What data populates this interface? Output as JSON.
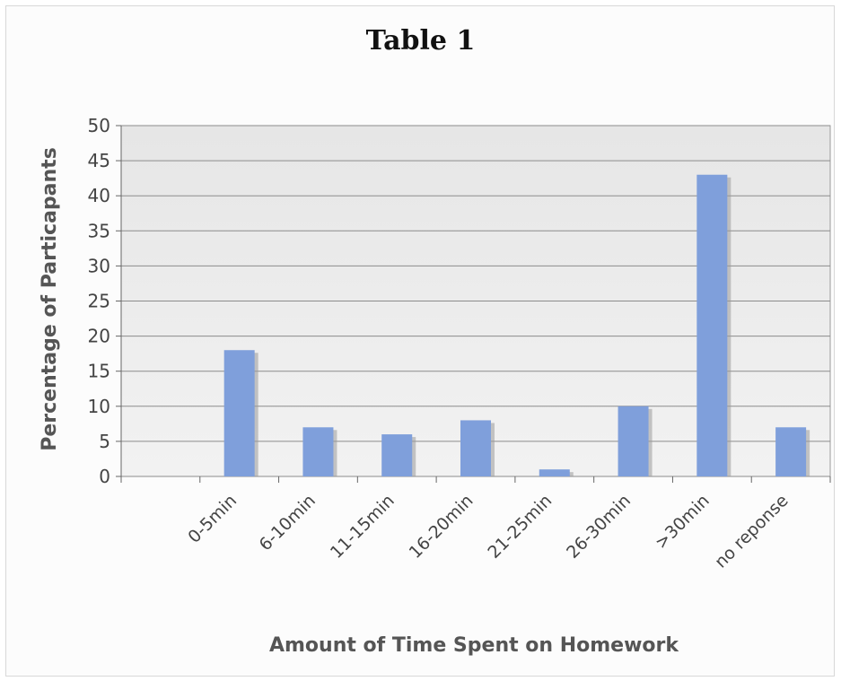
{
  "chart_data": {
    "type": "bar",
    "title": "Table 1",
    "xlabel": "Amount of Time Spent on Homework",
    "ylabel": "Percentage of Particapants",
    "categories": [
      "0-5min",
      "6-10min",
      "11-15min",
      "16-20min",
      "21-25min",
      "26-30min",
      ">30min",
      "no reponse"
    ],
    "values": [
      18,
      7,
      6,
      8,
      1,
      10,
      43,
      7
    ],
    "ylim": [
      0,
      50
    ],
    "yticks": [
      0,
      5,
      10,
      15,
      20,
      25,
      30,
      35,
      40,
      45,
      50
    ],
    "grid": true,
    "legend": "none",
    "colors": {
      "bar": "#7f9fdb",
      "bar_shadow": "#9a9a9a",
      "plot_background": "#ececec",
      "gridline": "#8c8c8c"
    }
  }
}
